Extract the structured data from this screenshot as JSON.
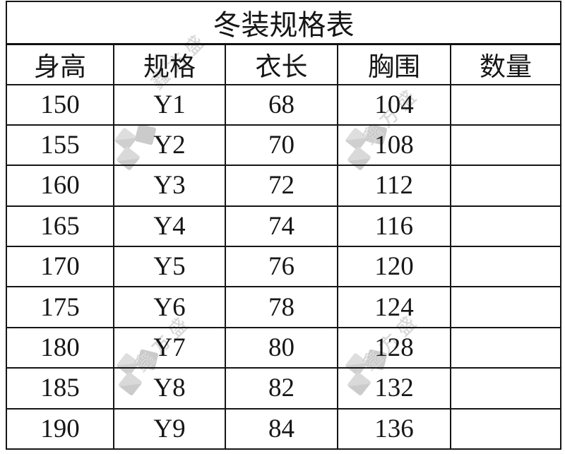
{
  "title": "冬装规格表",
  "table": {
    "columns": [
      "身高",
      "规格",
      "衣长",
      "胸围",
      "数量"
    ],
    "rows": [
      [
        "150",
        "Y1",
        "68",
        "104",
        ""
      ],
      [
        "155",
        "Y2",
        "70",
        "108",
        ""
      ],
      [
        "160",
        "Y3",
        "72",
        "112",
        ""
      ],
      [
        "165",
        "Y4",
        "74",
        "116",
        ""
      ],
      [
        "170",
        "Y5",
        "76",
        "120",
        ""
      ],
      [
        "175",
        "Y6",
        "78",
        "124",
        ""
      ],
      [
        "180",
        "Y7",
        "80",
        "128",
        ""
      ],
      [
        "185",
        "Y8",
        "82",
        "132",
        ""
      ],
      [
        "190",
        "Y9",
        "84",
        "136",
        ""
      ]
    ]
  },
  "watermark": {
    "text": "鑫方盛",
    "logo": "three-cubes-logo",
    "color": "#c7c7c7"
  },
  "colors": {
    "background": "#ffffff",
    "border": "#151515",
    "text": "#161616"
  }
}
